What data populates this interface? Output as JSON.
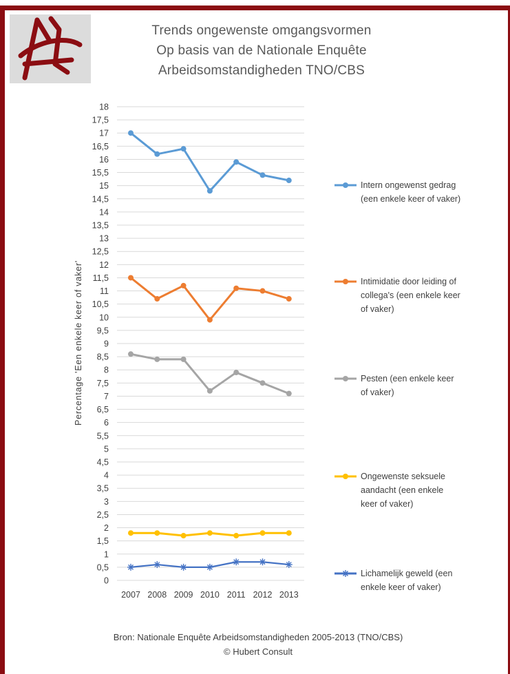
{
  "title_lines": [
    "Trends ongewenste omgangsvormen",
    "Op basis van de Nationale Enquête",
    "Arbeidsomstandigheden TNO/CBS"
  ],
  "source_lines": [
    "Bron: Nationale Enquête Arbeidsomstandigheden 2005-2013 (TNO/CBS)",
    "© Hubert Consult"
  ],
  "colors": {
    "frame": "#8b0d12",
    "logo_bg": "#dcdcdc",
    "logo_mark": "#8b0d12"
  },
  "chart_data": {
    "type": "line",
    "title": "Trends ongewenste omgangsvormen",
    "xlabel": "",
    "ylabel": "Percentage 'Een enkele keer of vaker'",
    "ylim": [
      0,
      18
    ],
    "ytick_step": 0.5,
    "yticks": [
      "0",
      "0,5",
      "1",
      "1,5",
      "2",
      "2,5",
      "3",
      "3,5",
      "4",
      "4,5",
      "5",
      "5,5",
      "6",
      "6,5",
      "7",
      "7,5",
      "8",
      "8,5",
      "9",
      "9,5",
      "10",
      "10,5",
      "11",
      "11,5",
      "12",
      "12,5",
      "13",
      "13,5",
      "14",
      "14,5",
      "15",
      "15,5",
      "16",
      "16,5",
      "17",
      "17,5",
      "18"
    ],
    "grid": true,
    "legend_position": "right",
    "categories": [
      "2007",
      "2008",
      "2009",
      "2010",
      "2011",
      "2012",
      "2013"
    ],
    "series": [
      {
        "name": "Intern ongewenst gedrag (een enkele keer of vaker)",
        "legend_lines": [
          "Intern ongewenst gedrag",
          "(een enkele keer of vaker)"
        ],
        "color": "#5b9bd5",
        "marker": "circle",
        "values": [
          17.0,
          16.2,
          16.4,
          14.8,
          15.9,
          15.4,
          15.2
        ]
      },
      {
        "name": "Intimidatie door leiding of collega's (een enkele keer of vaker)",
        "legend_lines": [
          "Intimidatie door leiding of",
          "collega's (een enkele keer",
          "of vaker)"
        ],
        "color": "#ed7d31",
        "marker": "circle",
        "values": [
          11.5,
          10.7,
          11.2,
          9.9,
          11.1,
          11.0,
          10.7
        ]
      },
      {
        "name": "Pesten (een enkele keer of vaker)",
        "legend_lines": [
          "Pesten (een enkele keer",
          "of vaker)"
        ],
        "color": "#a5a5a5",
        "marker": "circle",
        "values": [
          8.6,
          8.4,
          8.4,
          7.2,
          7.9,
          7.5,
          7.1
        ]
      },
      {
        "name": "Ongewenste seksuele aandacht (een enkele keer of vaker)",
        "legend_lines": [
          "Ongewenste seksuele",
          "aandacht (een enkele",
          "keer of vaker)"
        ],
        "color": "#ffc000",
        "marker": "circle",
        "values": [
          1.8,
          1.8,
          1.7,
          1.8,
          1.7,
          1.8,
          1.8
        ]
      },
      {
        "name": "Lichamelijk geweld (een enkele keer of vaker)",
        "legend_lines": [
          "Lichamelijk geweld (een",
          "enkele keer of vaker)"
        ],
        "color": "#4472c4",
        "marker": "star",
        "values": [
          0.5,
          0.6,
          0.5,
          0.5,
          0.7,
          0.7,
          0.6
        ]
      }
    ]
  }
}
